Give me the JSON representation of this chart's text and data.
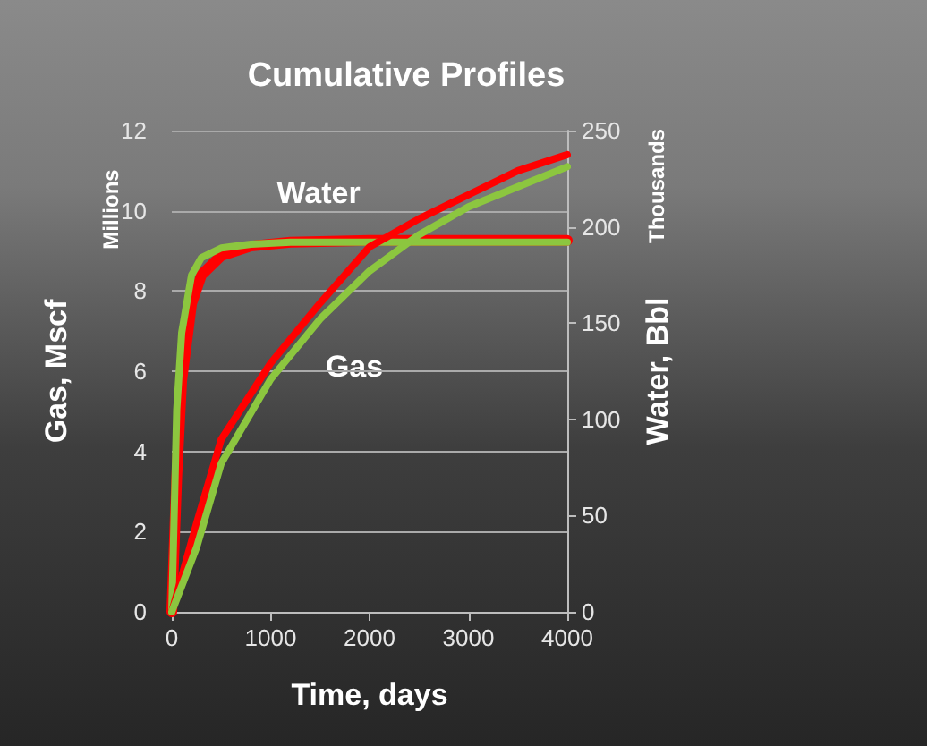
{
  "chart_data": {
    "type": "line",
    "title": "Cumulative Profiles",
    "xlabel": "Time, days",
    "ylabel": "Gas, Mscf",
    "y2label": "Water, Bbl",
    "annotations": [
      "Millions",
      "Thousands",
      "Water",
      "Gas"
    ],
    "xlim": [
      0,
      4000
    ],
    "xticks": [
      0,
      1000,
      2000,
      3000,
      4000
    ],
    "ylim": [
      0,
      12
    ],
    "yticks": [
      0,
      2,
      4,
      6,
      8,
      10,
      12
    ],
    "y2lim": [
      0,
      250
    ],
    "y2ticks": [
      0,
      50,
      100,
      150,
      200,
      250
    ],
    "grid": "y",
    "marker": "none",
    "line_style": "solid",
    "series": [
      {
        "color": "#ff0000",
        "axis": "y2",
        "x": [
          0,
          50,
          100,
          200,
          300,
          500,
          800,
          1200,
          2000,
          4000
        ],
        "values": [
          0,
          70,
          120,
          160,
          175,
          185,
          190,
          192,
          193,
          193
        ]
      },
      {
        "color": "#8cc63f",
        "axis": "y2",
        "x": [
          0,
          50,
          100,
          200,
          300,
          500,
          800,
          1200,
          2000,
          4000
        ],
        "values": [
          0,
          105,
          145,
          175,
          184,
          189,
          191,
          192,
          192,
          192
        ]
      },
      {
        "color": "#ff0000",
        "x": [
          0,
          250,
          500,
          1000,
          1500,
          2000,
          2500,
          3000,
          3500,
          4000
        ],
        "values": [
          0,
          2.2,
          4.3,
          6.2,
          7.7,
          9.1,
          9.8,
          10.4,
          11.0,
          11.4
        ]
      },
      {
        "color": "#8cc63f",
        "x": [
          0,
          250,
          500,
          1000,
          1500,
          2000,
          2500,
          3000,
          3500,
          4000
        ],
        "values": [
          0,
          1.6,
          3.7,
          5.8,
          7.3,
          8.5,
          9.4,
          10.1,
          10.6,
          11.1
        ]
      }
    ]
  }
}
